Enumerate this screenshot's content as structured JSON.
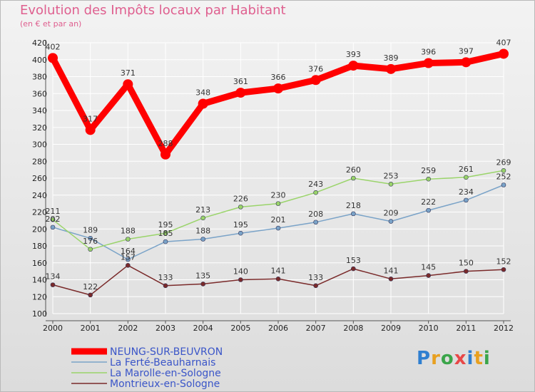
{
  "chart_data": {
    "type": "line",
    "title": "Evolution des Impôts locaux par Habitant",
    "subtitle": "(en € et par an)",
    "xlabel": "",
    "ylabel": "",
    "ylim": [
      100,
      420
    ],
    "yticks": [
      100,
      120,
      140,
      160,
      180,
      200,
      220,
      240,
      260,
      280,
      300,
      320,
      340,
      360,
      380,
      400,
      420
    ],
    "grid": true,
    "categories": [
      "2000",
      "2001",
      "2002",
      "2003",
      "2004",
      "2005",
      "2006",
      "2007",
      "2008",
      "2009",
      "2010",
      "2011",
      "2012"
    ],
    "series": [
      {
        "name": "NEUNG-SUR-BEUVRON",
        "color": "#ff0000",
        "values": [
          402,
          317,
          371,
          288,
          348,
          361,
          366,
          376,
          393,
          389,
          396,
          397,
          407
        ]
      },
      {
        "name": "La Ferté-Beauharnais",
        "color": "#7aa3c8",
        "values": [
          202,
          189,
          164,
          185,
          188,
          195,
          201,
          208,
          218,
          209,
          222,
          234,
          252
        ]
      },
      {
        "name": "La Marolle-en-Sologne",
        "color": "#9ad46a",
        "values": [
          211,
          176,
          188,
          195,
          213,
          226,
          230,
          243,
          260,
          253,
          259,
          261,
          269
        ]
      },
      {
        "name": "Montrieux-en-Sologne",
        "color": "#7a2a2a",
        "values": [
          134,
          122,
          157,
          133,
          135,
          140,
          141,
          133,
          153,
          141,
          145,
          150,
          152
        ]
      }
    ]
  },
  "logo": {
    "text": "Proxiti"
  }
}
